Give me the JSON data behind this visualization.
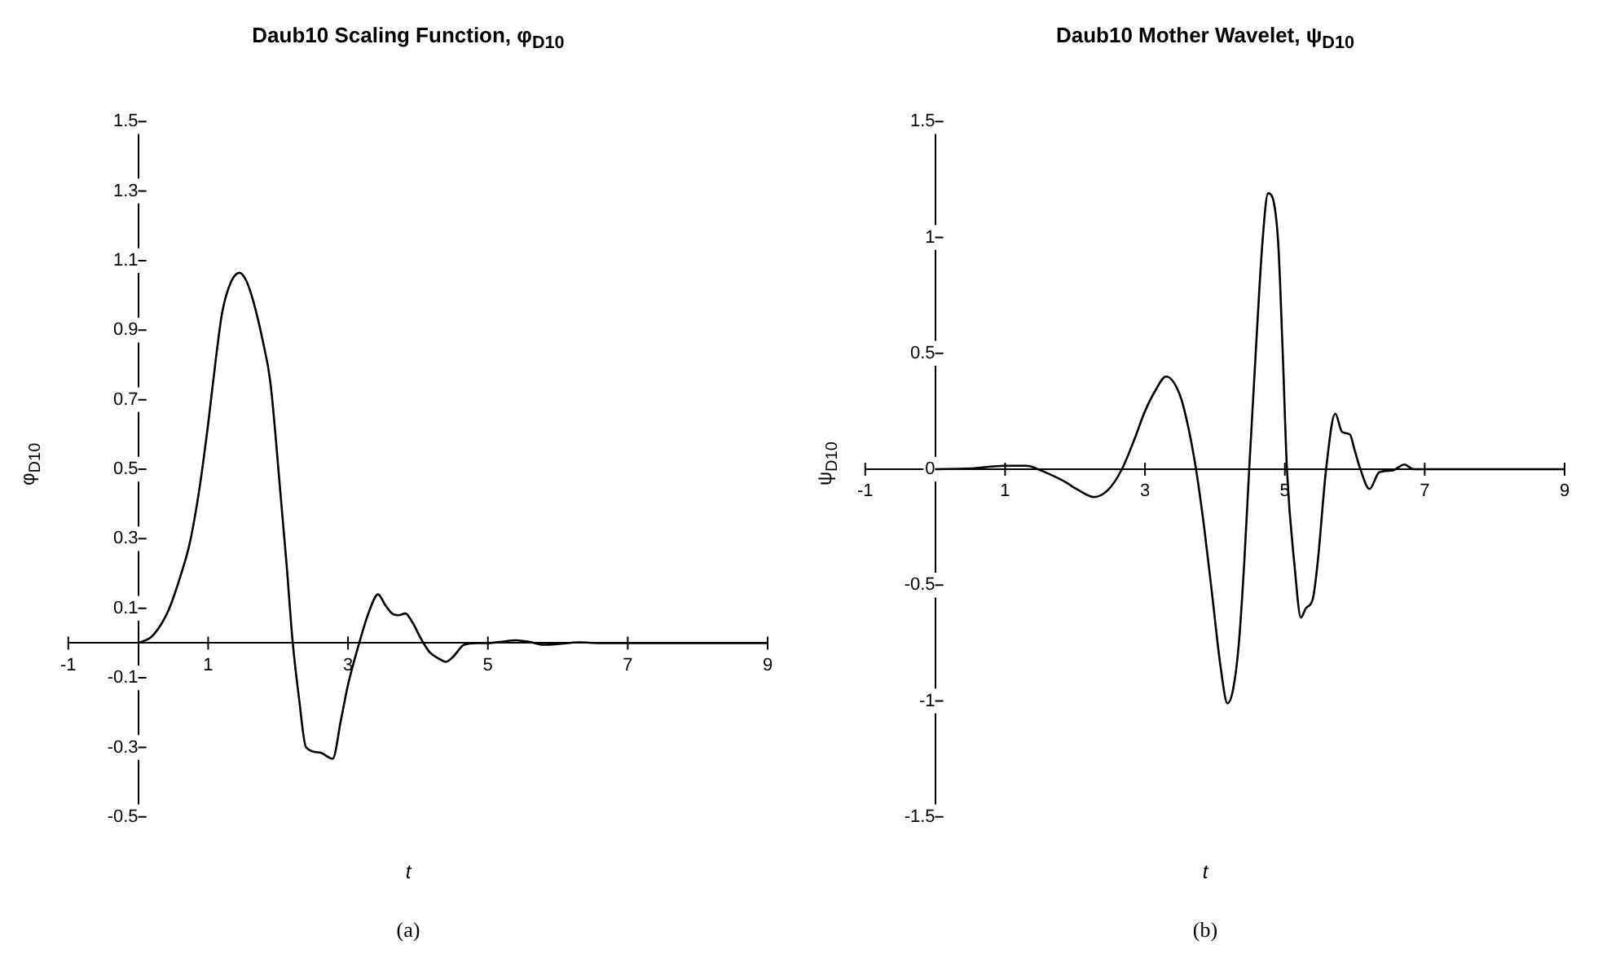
{
  "chart_data": [
    {
      "type": "line",
      "title": "Daub10 Scaling Function, φ$_{D10}$",
      "xlabel": "t",
      "ylabel": "φ$_{D10}$",
      "annotations": [
        "(a)"
      ],
      "x": [
        0,
        0.2,
        0.43,
        0.6,
        0.74,
        0.88,
        1.0,
        1.1,
        1.2,
        1.33,
        1.45,
        1.55,
        1.65,
        1.78,
        1.89,
        2.03,
        2.12,
        2.21,
        2.3,
        2.4,
        2.6,
        2.78,
        2.9,
        3.0,
        3.16,
        3.3,
        3.43,
        3.53,
        3.63,
        3.72,
        3.82,
        3.92,
        4.05,
        4.17,
        4.3,
        4.4,
        4.5,
        4.66,
        4.85,
        5.0,
        5.2,
        5.4,
        5.6,
        5.8,
        6.0,
        6.3,
        6.6,
        7,
        8,
        9
      ],
      "series": [
        {
          "color": "#000000",
          "values": [
            0,
            0.02,
            0.093,
            0.19,
            0.29,
            0.45,
            0.63,
            0.8,
            0.95,
            1.04,
            1.065,
            1.04,
            0.98,
            0.87,
            0.75,
            0.44,
            0.23,
            0,
            -0.16,
            -0.3,
            -0.315,
            -0.333,
            -0.22,
            -0.12,
            0,
            0.09,
            0.14,
            0.11,
            0.085,
            0.08,
            0.085,
            0.06,
            0.01,
            -0.027,
            -0.045,
            -0.054,
            -0.04,
            -0.005,
            0,
            0,
            0.004,
            0.008,
            0.003,
            -0.005,
            -0.003,
            0.002,
            0,
            0,
            0,
            0
          ]
        }
      ],
      "xlim": [
        -1,
        9
      ],
      "xticks": [
        -1,
        1,
        3,
        5,
        7,
        9
      ],
      "ylim": [
        -0.5,
        1.5
      ],
      "yticks": [
        -0.5,
        -0.3,
        -0.1,
        0.1,
        0.3,
        0.5,
        0.7,
        0.9,
        1.1,
        1.3,
        1.5
      ]
    },
    {
      "type": "line",
      "title": "Daub10 Mother Wavelet, ψ$_{D10}$",
      "xlabel": "t",
      "ylabel": "ψ$_{D10}$",
      "annotations": [
        "(b)"
      ],
      "x": [
        0,
        0.5,
        1.0,
        1.3,
        1.55,
        1.83,
        2.05,
        2.27,
        2.47,
        2.67,
        2.85,
        3.0,
        3.15,
        3.3,
        3.5,
        3.62,
        3.73,
        3.85,
        3.96,
        4.08,
        4.18,
        4.26,
        4.34,
        4.42,
        4.49,
        4.6,
        4.68,
        4.76,
        4.9,
        4.97,
        5.03,
        5.14,
        5.23,
        5.3,
        5.4,
        5.47,
        5.59,
        5.72,
        5.82,
        5.93,
        6.0,
        6.08,
        6.21,
        6.35,
        6.54,
        6.71,
        6.84,
        7,
        8,
        9
      ],
      "series": [
        {
          "color": "#000000",
          "values": [
            0,
            0.003,
            0.015,
            0.015,
            -0.01,
            -0.05,
            -0.09,
            -0.12,
            -0.09,
            0,
            0.13,
            0.25,
            0.34,
            0.4,
            0.32,
            0.18,
            0,
            -0.26,
            -0.54,
            -0.85,
            -1.01,
            -0.95,
            -0.76,
            -0.4,
            0,
            0.59,
            0.98,
            1.19,
            1.0,
            0.5,
            0,
            -0.42,
            -0.64,
            -0.6,
            -0.56,
            -0.4,
            0,
            0.24,
            0.16,
            0.15,
            0.08,
            0,
            -0.085,
            -0.013,
            -0.005,
            0.02,
            0,
            0,
            0,
            0
          ]
        }
      ],
      "xlim": [
        -1,
        9
      ],
      "xticks": [
        -1,
        1,
        3,
        5,
        7,
        9
      ],
      "ylim": [
        -1.5,
        1.5
      ],
      "yticks": [
        -1.5,
        -1,
        -0.5,
        0,
        0.5,
        1,
        1.5
      ]
    }
  ]
}
